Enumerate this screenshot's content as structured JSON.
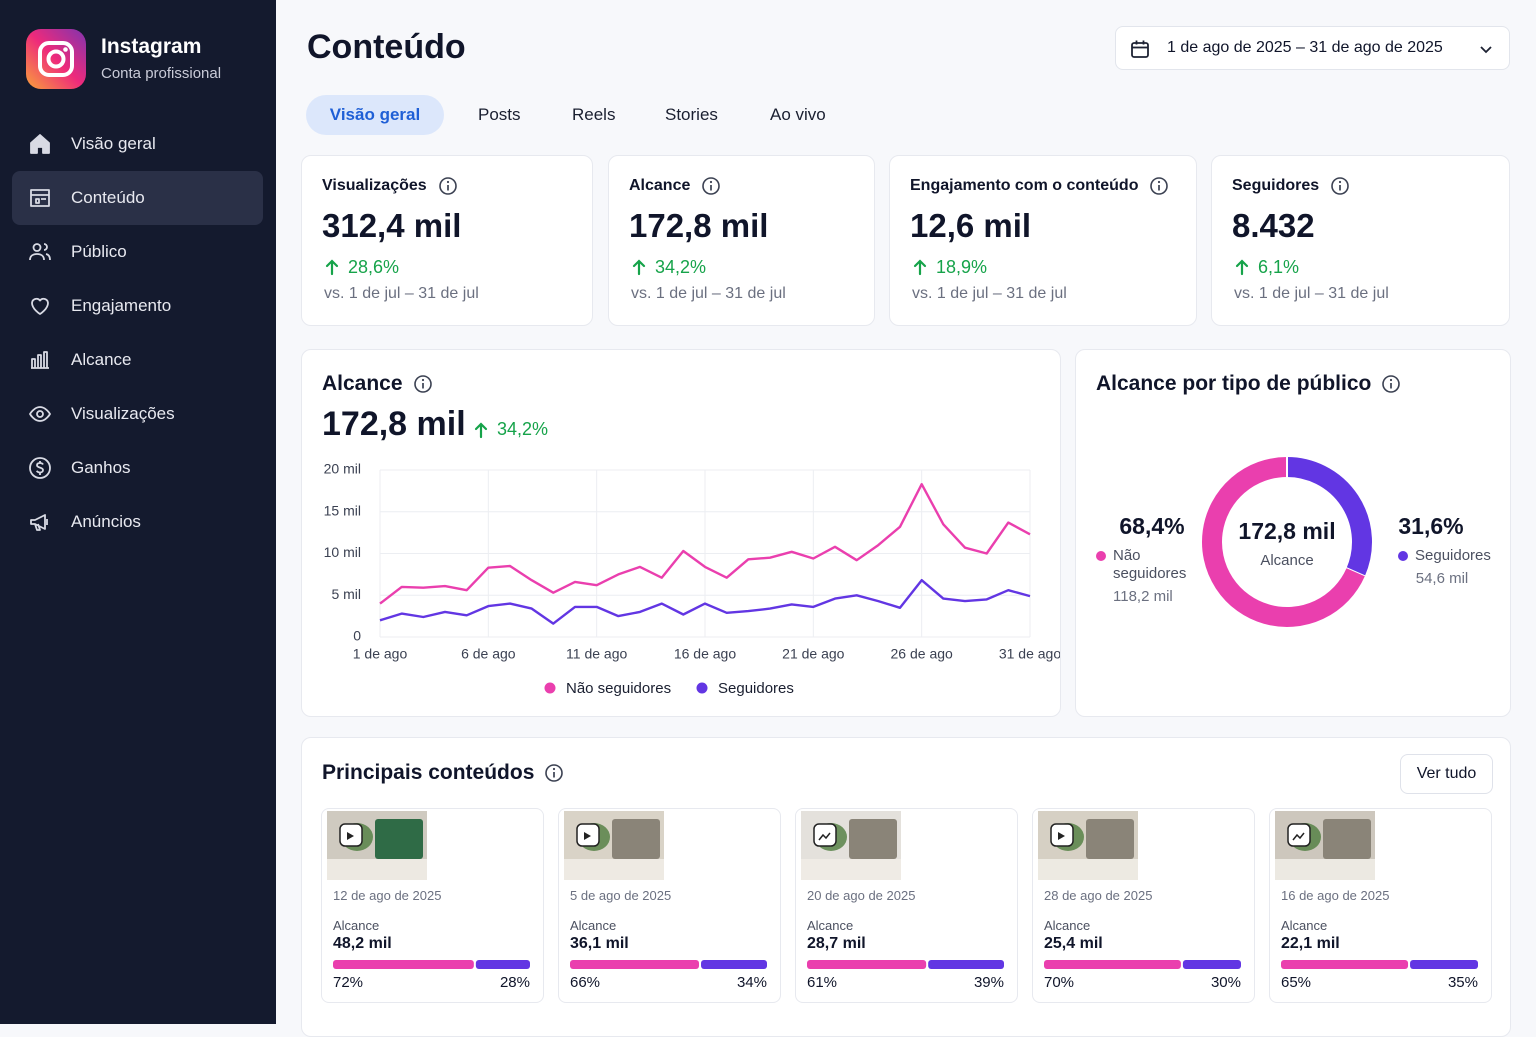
{
  "sidebar": {
    "app": "Instagram",
    "account": "Conta profissional",
    "nav": [
      "Visão geral",
      "Conteúdo",
      "Público",
      "Engajamento",
      "Alcance",
      "Visualizações",
      "Ganhos",
      "Anúncios"
    ],
    "active": 1
  },
  "header": {
    "title": "Conteúdo",
    "date_range": "1 de ago de 2025 – 31 de ago de 2025"
  },
  "tabs": {
    "items": [
      "Visão geral",
      "Posts",
      "Reels",
      "Stories",
      "Ao vivo"
    ],
    "active": 0
  },
  "kpis": [
    {
      "label": "Visualizações",
      "value": "312,4 mil",
      "change": "28,6%",
      "comparison": "vs. 1 de jul – 31 de jul"
    },
    {
      "label": "Alcance",
      "value": "172,8 mil",
      "change": "34,2%",
      "comparison": "vs. 1 de jul – 31 de jul"
    },
    {
      "label": "Engajamento com o conteúdo",
      "value": "12,6 mil",
      "change": "18,9%",
      "comparison": "vs. 1 de jul – 31 de jul"
    },
    {
      "label": "Seguidores",
      "value": "8.432",
      "change": "6,1%",
      "comparison": "vs. 1 de jul – 31 de jul"
    }
  ],
  "chart_data": [
    {
      "type": "line",
      "title": "Alcance",
      "headline": "172,8 mil",
      "change": "34,2%",
      "categories": [
        "1 de ago",
        null,
        null,
        null,
        null,
        "6 de ago",
        null,
        null,
        null,
        null,
        "11 de ago",
        null,
        null,
        null,
        null,
        "16 de ago",
        null,
        null,
        null,
        null,
        "21 de ago",
        null,
        null,
        null,
        null,
        "26 de ago",
        null,
        null,
        null,
        null,
        "31 de ago"
      ],
      "series": [
        {
          "name": "Não seguidores",
          "color": "#ea3fae",
          "values": [
            4000,
            6000,
            5900,
            6100,
            5600,
            8300,
            8500,
            6800,
            5300,
            6600,
            6200,
            7500,
            8400,
            7100,
            10300,
            8400,
            7100,
            9300,
            9500,
            10200,
            9400,
            10800,
            9200,
            11000,
            13200,
            18300,
            13500,
            10700,
            10000,
            13700,
            12300
          ]
        },
        {
          "name": "Seguidores",
          "color": "#6236e3",
          "values": [
            2000,
            2800,
            2400,
            3000,
            2600,
            3700,
            4000,
            3400,
            1600,
            3600,
            3600,
            2500,
            3000,
            4000,
            2700,
            4000,
            2900,
            3100,
            3400,
            3900,
            3600,
            4600,
            5000,
            4300,
            3500,
            6800,
            4600,
            4300,
            4500,
            5600,
            4900
          ]
        }
      ],
      "ylim": [
        0,
        20000
      ],
      "yticks": [
        0,
        {
          "value": 5000,
          "label": "5 mil"
        },
        {
          "value": 10000,
          "label": "10 mil"
        },
        {
          "value": 15000,
          "label": "15 mil"
        },
        {
          "value": 20000,
          "label": "20 mil"
        }
      ],
      "grid": true
    },
    {
      "type": "donut",
      "title": "Alcance por tipo de público",
      "center_value": "172,8 mil",
      "center_label": "Alcance",
      "categories": [
        "Não seguidores",
        "Seguidores"
      ],
      "values": [
        68.4,
        31.6
      ],
      "value_labels": [
        "68,4%",
        "31,6%"
      ],
      "amounts": [
        "118,2 mil",
        "54,6 mil"
      ],
      "colors": [
        "#ea3fae",
        "#6236e3"
      ]
    }
  ],
  "top_content": {
    "title": "Principais conteúdos",
    "action": "Ver tudo",
    "metric_label": "Alcance",
    "items": [
      {
        "format": "reel",
        "date": "12 de ago de 2025",
        "value": "48,2 mil",
        "split": [
          72,
          28
        ],
        "split_labels": [
          "72%",
          "28%"
        ]
      },
      {
        "format": "reel",
        "date": "5 de ago de 2025",
        "value": "36,1 mil",
        "split": [
          66,
          34
        ],
        "split_labels": [
          "66%",
          "34%"
        ]
      },
      {
        "format": "post",
        "date": "20 de ago de 2025",
        "value": "28,7 mil",
        "split": [
          61,
          39
        ],
        "split_labels": [
          "61%",
          "39%"
        ]
      },
      {
        "format": "reel",
        "date": "28 de ago de 2025",
        "value": "25,4 mil",
        "split": [
          70,
          30
        ],
        "split_labels": [
          "70%",
          "30%"
        ]
      },
      {
        "format": "post",
        "date": "16 de ago de 2025",
        "value": "22,1 mil",
        "split": [
          65,
          35
        ],
        "split_labels": [
          "65%",
          "35%"
        ]
      }
    ]
  }
}
